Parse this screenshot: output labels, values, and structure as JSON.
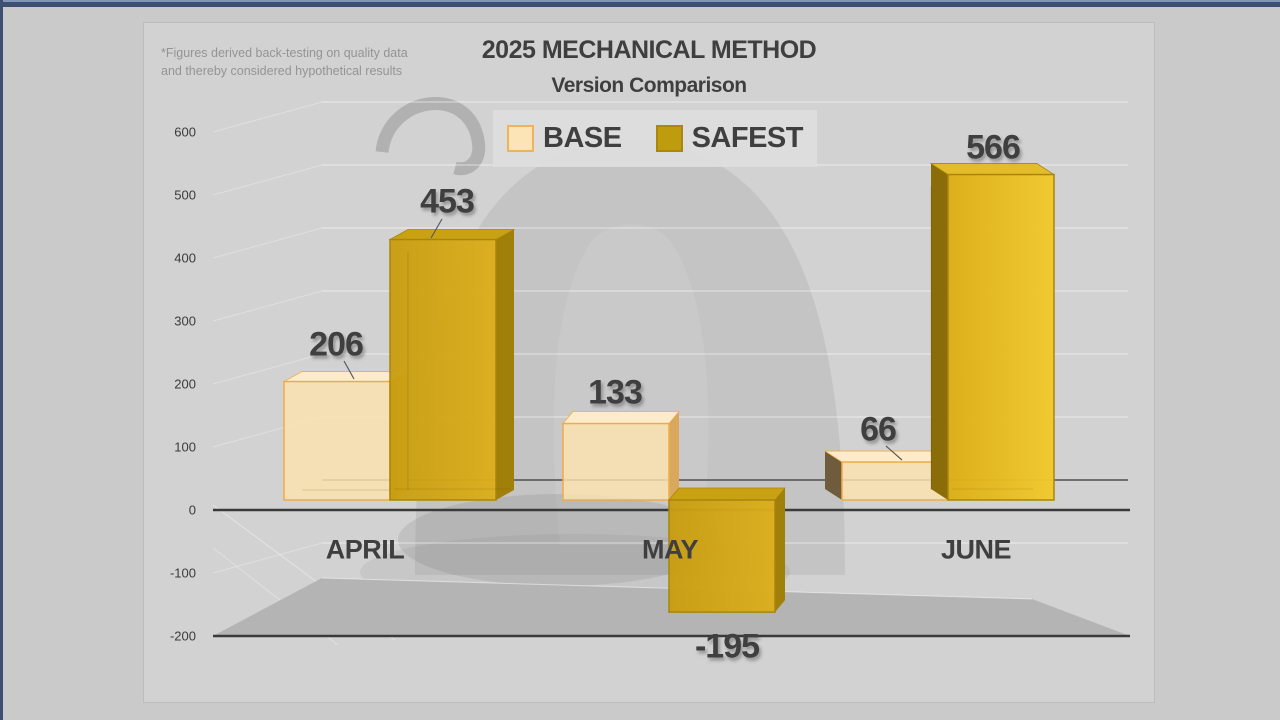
{
  "window": {
    "background": "#cbcaca",
    "accent_bar": "#3e4f73",
    "accent_bar_highlight": "#8296b8"
  },
  "panel": {
    "background": "#d3d2d2",
    "border": "#bdbcbc"
  },
  "disclaimer": {
    "lines": [
      "*Figures derived back-testing on quality data",
      "and thereby considered hypothetical results"
    ]
  },
  "title": "2025 MECHANICAL METHOD",
  "subtitle": "Version Comparison",
  "legend": [
    {
      "label": "BASE",
      "swatch_fill": "#fce4b6",
      "swatch_border": "#f0b25c"
    },
    {
      "label": "SAFEST",
      "swatch_fill": "#bf9b0e",
      "swatch_border": "#a8870b"
    }
  ],
  "chart_data": {
    "type": "bar",
    "style": "3d-perspective",
    "title": "2025 MECHANICAL METHOD Version Comparison",
    "categories": [
      "APRIL",
      "MAY",
      "JUNE"
    ],
    "series": [
      {
        "name": "BASE",
        "values": [
          206,
          133,
          66
        ],
        "color": "#fbe2b0",
        "edge": "#efab49"
      },
      {
        "name": "SAFEST",
        "values": [
          453,
          -195,
          566
        ],
        "color": "#d0a413",
        "edge": "#a8850c"
      }
    ],
    "ylim": [
      -200,
      600
    ],
    "ytick_step": 100,
    "yticks": [
      600,
      500,
      400,
      300,
      200,
      100,
      0,
      -100,
      -200
    ],
    "grid": true,
    "legend_position": "top-center",
    "axis_color": "#3a3a3a",
    "label_color": "#3f3f3f"
  }
}
